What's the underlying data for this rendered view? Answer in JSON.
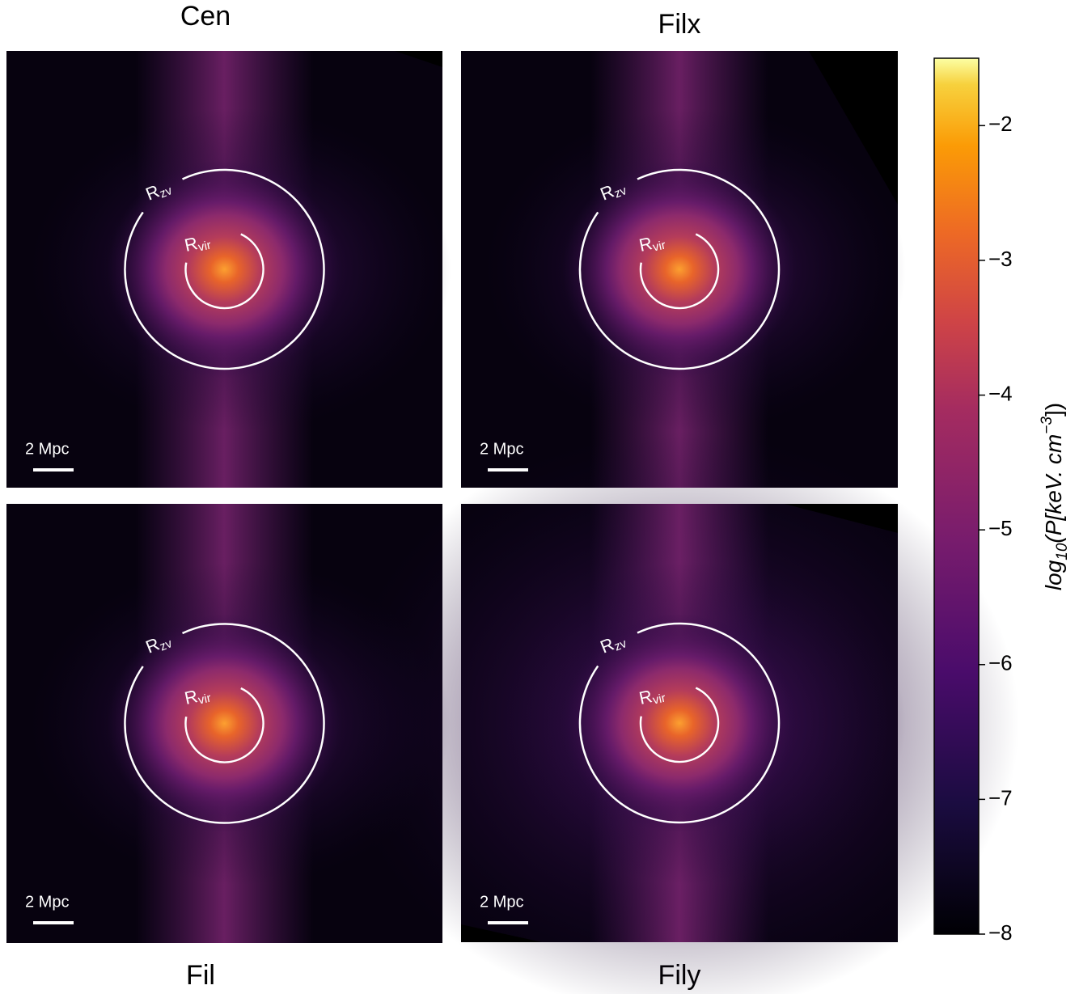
{
  "panels": [
    {
      "title": "Cen",
      "outer_label": {
        "text": "R",
        "sub": "zv"
      },
      "inner_label": {
        "text": "R",
        "sub": "vir"
      },
      "scale_label": "2 Mpc"
    },
    {
      "title": "Filx",
      "outer_label": {
        "text": "R",
        "sub": "zv"
      },
      "inner_label": {
        "text": "R",
        "sub": "vir"
      },
      "scale_label": "2 Mpc"
    },
    {
      "title": "Fil",
      "outer_label": {
        "text": "R",
        "sub": "zv"
      },
      "inner_label": {
        "text": "R",
        "sub": "vir"
      },
      "scale_label": "2 Mpc"
    },
    {
      "title": "Fily",
      "outer_label": {
        "text": "R",
        "sub": "zv"
      },
      "inner_label": {
        "text": "R",
        "sub": "vir"
      },
      "scale_label": "2 Mpc"
    }
  ],
  "colorbar": {
    "label": {
      "pre": "log",
      "sub": "10",
      "mid": "(P[keV. cm",
      "sup": "−3",
      "post": "])"
    },
    "lim": [
      -8,
      -1.5
    ],
    "ticks": [
      {
        "value": -2,
        "label": "−2"
      },
      {
        "value": -3,
        "label": "−3"
      },
      {
        "value": -4,
        "label": "−4"
      },
      {
        "value": -5,
        "label": "−5"
      },
      {
        "value": -6,
        "label": "−6"
      },
      {
        "value": -7,
        "label": "−7"
      },
      {
        "value": -8,
        "label": "−8"
      }
    ]
  }
}
